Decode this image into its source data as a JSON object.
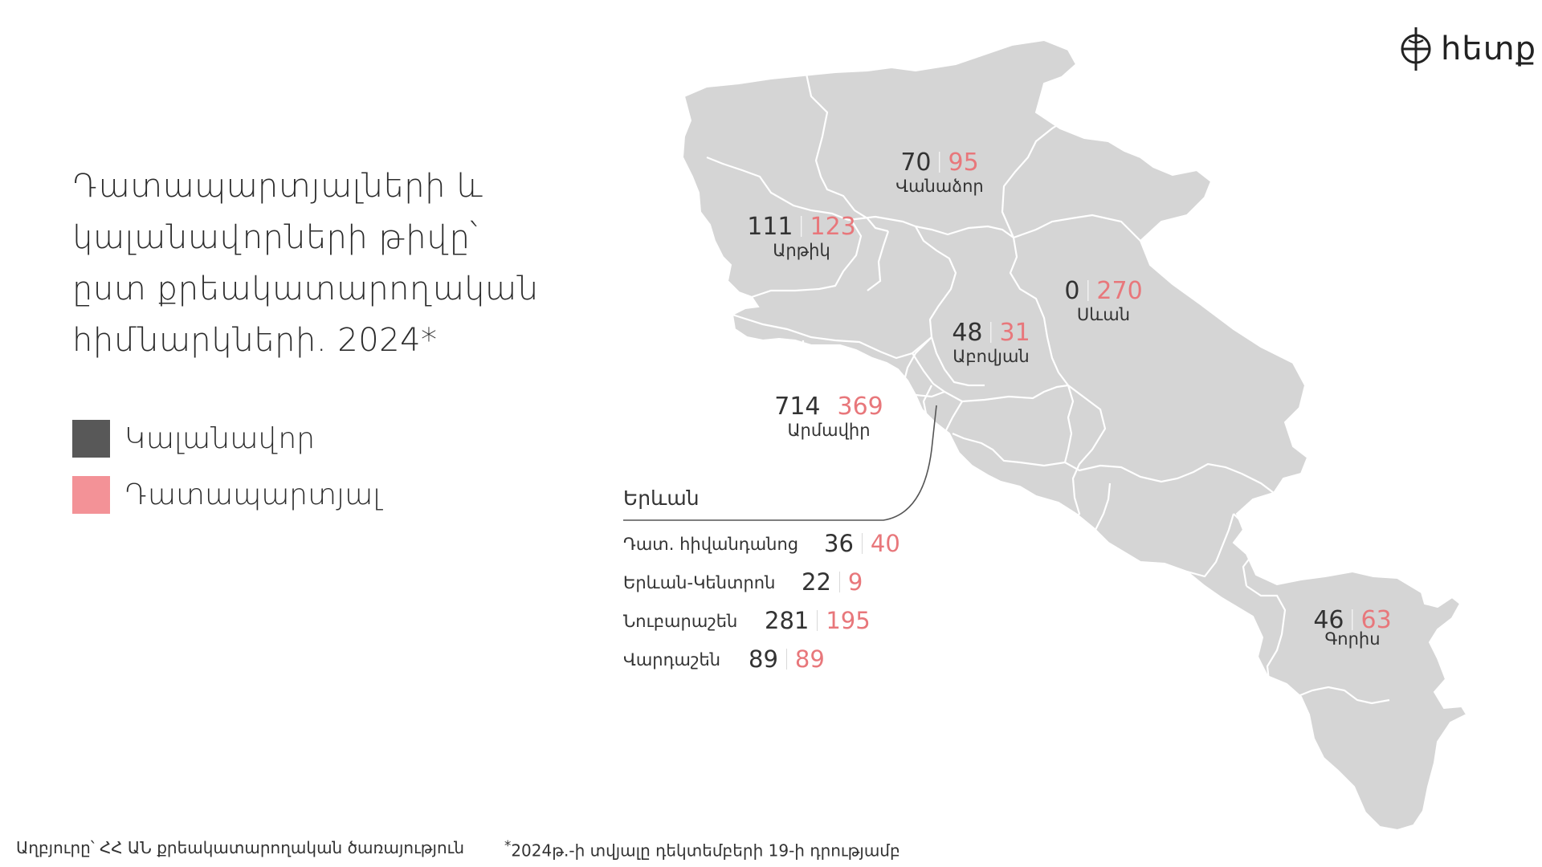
{
  "title_lines": [
    "Դատապարտյալների և",
    "կալանավորների թիվը՝",
    "ըստ քրեակատարողական",
    "հիմնարկների. 2024*"
  ],
  "legend": [
    {
      "label": "Կալանավոր",
      "color": "#585858"
    },
    {
      "label": "Դատապարտյալ",
      "color": "#f39297"
    }
  ],
  "logo": {
    "text": "հետք"
  },
  "colors": {
    "map_fill": "#d5d5d5",
    "map_border": "#ffffff",
    "detainee": "#333333",
    "convict": "#e8777b"
  },
  "regions": [
    {
      "name": "Վանաձոր",
      "detainees": "70",
      "convicts": "95"
    },
    {
      "name": "Արթիկ",
      "detainees": "111",
      "convicts": "123"
    },
    {
      "name": "Սևան",
      "detainees": "0",
      "convicts": "270"
    },
    {
      "name": "Աբովյան",
      "detainees": "48",
      "convicts": "31"
    },
    {
      "name": "Արմավիր",
      "detainees": "714",
      "convicts": "369"
    },
    {
      "name": "Գորիս",
      "detainees": "46",
      "convicts": "63"
    }
  ],
  "yerevan": {
    "title": "Երևան",
    "rows": [
      {
        "name": "Դատ. հիվանդանոց",
        "detainees": "36",
        "convicts": "40"
      },
      {
        "name": "Երևան-Կենտրոն",
        "detainees": "22",
        "convicts": "9"
      },
      {
        "name": "Նուբարաշեն",
        "detainees": "281",
        "convicts": "195"
      },
      {
        "name": "Վարդաշեն",
        "detainees": "89",
        "convicts": "89"
      }
    ]
  },
  "footer": {
    "source": "Աղբյուրը՝ ՀՀ ԱՆ քրեակատարողական ծառայություն",
    "note_mark": "*",
    "note": "2024թ.-ի տվյալը դեկտեմբերի 19-ի դրությամբ"
  }
}
